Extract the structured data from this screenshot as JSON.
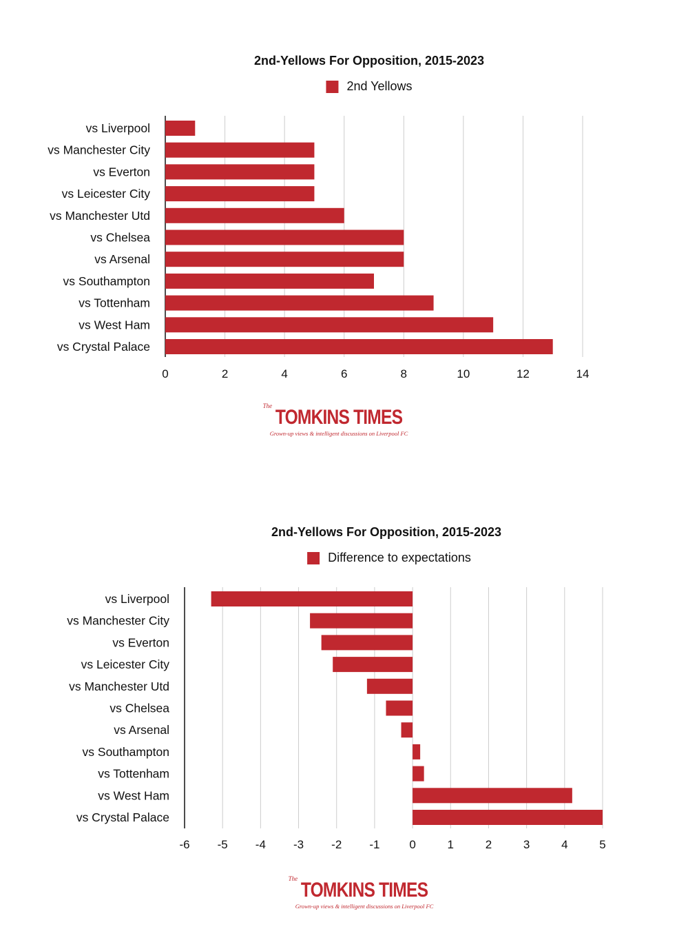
{
  "colors": {
    "bar": "#c0282f",
    "grid": "#cccccc",
    "axis": "#111111",
    "text": "#111111"
  },
  "chart_data": [
    {
      "type": "bar",
      "orientation": "horizontal",
      "title": "2nd-Yellows For Opposition, 2015-2023",
      "legend": {
        "position": "top",
        "entries": [
          "2nd Yellows"
        ]
      },
      "categories": [
        "vs Liverpool",
        "vs Manchester City",
        "vs Everton",
        "vs Leicester City",
        "vs Manchester Utd",
        "vs Chelsea",
        "vs Arsenal",
        "vs Southampton",
        "vs Tottenham",
        "vs West Ham",
        "vs Crystal Palace"
      ],
      "series": [
        {
          "name": "2nd Yellows",
          "values": [
            1,
            5,
            5,
            5,
            6,
            8,
            8,
            7,
            9,
            11,
            13
          ]
        }
      ],
      "xlim": [
        0,
        14
      ],
      "xticks": [
        "0",
        "2",
        "4",
        "6",
        "8",
        "10",
        "12",
        "14"
      ],
      "grid": true
    },
    {
      "type": "bar",
      "orientation": "horizontal",
      "title": "2nd-Yellows For Opposition, 2015-2023",
      "legend": {
        "position": "top",
        "entries": [
          "Difference to expectations"
        ]
      },
      "categories": [
        "vs Liverpool",
        "vs Manchester City",
        "vs Everton",
        "vs Leicester City",
        "vs Manchester Utd",
        "vs Chelsea",
        "vs Arsenal",
        "vs Southampton",
        "vs Tottenham",
        "vs West Ham",
        "vs Crystal Palace"
      ],
      "series": [
        {
          "name": "Difference to expectations",
          "values": [
            -5.3,
            -2.7,
            -2.4,
            -2.1,
            -1.2,
            -0.7,
            -0.3,
            0.2,
            0.3,
            4.2,
            5.0
          ]
        }
      ],
      "xlim": [
        -6,
        5
      ],
      "xticks": [
        "-6",
        "-5",
        "-4",
        "-3",
        "-2",
        "-1",
        "0",
        "1",
        "2",
        "3",
        "4",
        "5"
      ],
      "grid": true
    }
  ],
  "logos": [
    {
      "the": "The",
      "name": "TOMKINS TIMES",
      "tagline": "Grown-up views & intelligent discussions on Liverpool FC"
    },
    {
      "the": "The",
      "name": "TOMKINS TIMES",
      "tagline": "Grown-up views & intelligent discussions on Liverpool FC"
    }
  ]
}
